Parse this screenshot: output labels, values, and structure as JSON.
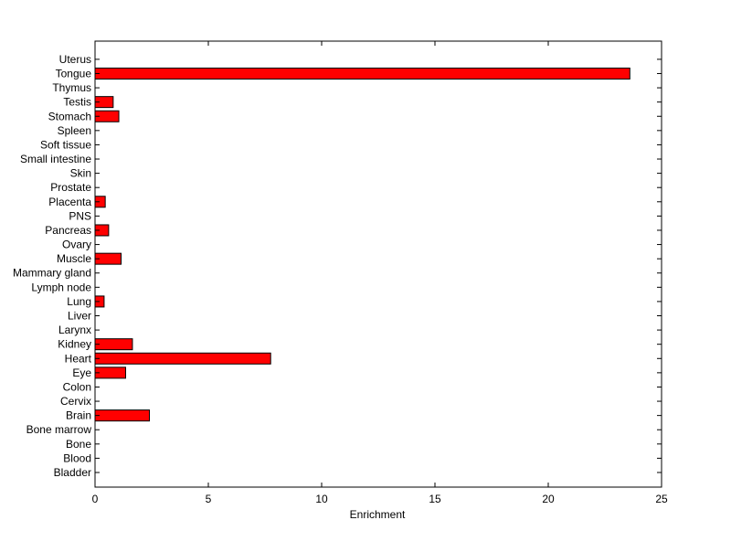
{
  "chart_data": {
    "type": "bar",
    "orientation": "horizontal",
    "xlabel": "Enrichment",
    "xlim": [
      0,
      25
    ],
    "xticks": [
      "0",
      "5",
      "10",
      "15",
      "20",
      "25"
    ],
    "grid": false,
    "bar_color": "#ff0000",
    "bar_edge_color": "#000000",
    "categories": [
      "Bladder",
      "Blood",
      "Bone",
      "Bone marrow",
      "Brain",
      "Cervix",
      "Colon",
      "Eye",
      "Heart",
      "Kidney",
      "Larynx",
      "Liver",
      "Lung",
      "Lymph node",
      "Mammary gland",
      "Muscle",
      "Ovary",
      "Pancreas",
      "PNS",
      "Placenta",
      "Prostate",
      "Skin",
      "Small intestine",
      "Soft tissue",
      "Spleen",
      "Stomach",
      "Testis",
      "Thymus",
      "Tongue",
      "Uterus"
    ],
    "values": [
      0,
      0,
      0,
      0,
      2.4,
      0,
      0,
      1.35,
      7.75,
      1.65,
      0,
      0,
      0.4,
      0,
      0,
      1.15,
      0,
      0.6,
      0,
      0.45,
      0,
      0,
      0,
      0,
      0,
      1.05,
      0.8,
      0,
      23.6,
      0
    ]
  }
}
